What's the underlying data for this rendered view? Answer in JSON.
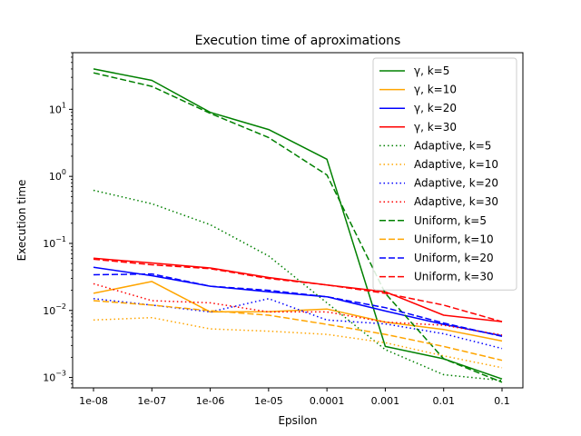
{
  "chart_data": {
    "type": "line",
    "title": "Execution time of aproximations",
    "xlabel": "Epsilon",
    "ylabel": "Execution time",
    "y_scale": "log",
    "ylim": [
      0.0007,
      70
    ],
    "categories": [
      "1e-08",
      "1e-07",
      "1e-06",
      "1e-05",
      "0.0001",
      "0.001",
      "0.01",
      "0.1"
    ],
    "y_ticks": [
      {
        "value": 0.001,
        "base": "10",
        "exp": "−3"
      },
      {
        "value": 0.01,
        "base": "10",
        "exp": "−2"
      },
      {
        "value": 0.1,
        "base": "10",
        "exp": "−1"
      },
      {
        "value": 1,
        "base": "10",
        "exp": "0"
      },
      {
        "value": 10,
        "base": "10",
        "exp": "1"
      }
    ],
    "legend_position": "top-right",
    "grid": false,
    "series": [
      {
        "name": "γ, k=5",
        "color": "#008000",
        "style": "solid",
        "values": [
          40,
          27,
          9,
          5,
          1.8,
          0.0029,
          0.0019,
          0.00095
        ]
      },
      {
        "name": "γ, k=10",
        "color": "#ffa500",
        "style": "solid",
        "values": [
          0.018,
          0.027,
          0.0095,
          0.0096,
          0.0105,
          0.0067,
          0.0052,
          0.0035
        ]
      },
      {
        "name": "γ, k=20",
        "color": "#0000ff",
        "style": "solid",
        "values": [
          0.044,
          0.033,
          0.023,
          0.019,
          0.016,
          0.0098,
          0.0062,
          0.0042
        ]
      },
      {
        "name": "γ, k=30",
        "color": "#ff0000",
        "style": "solid",
        "values": [
          0.06,
          0.051,
          0.043,
          0.031,
          0.024,
          0.019,
          0.0085,
          0.0068
        ]
      },
      {
        "name": "Adaptive, k=5",
        "color": "#008000",
        "style": "dotted",
        "values": [
          0.62,
          0.39,
          0.19,
          0.065,
          0.013,
          0.0026,
          0.0011,
          0.0009
        ]
      },
      {
        "name": "Adaptive, k=10",
        "color": "#ffa500",
        "style": "dotted",
        "values": [
          0.0072,
          0.0078,
          0.0053,
          0.0049,
          0.0044,
          0.0033,
          0.0021,
          0.0014
        ]
      },
      {
        "name": "Adaptive, k=20",
        "color": "#0000ff",
        "style": "dotted",
        "values": [
          0.015,
          0.012,
          0.0095,
          0.015,
          0.0072,
          0.0063,
          0.0045,
          0.0027
        ]
      },
      {
        "name": "Adaptive, k=30",
        "color": "#ff0000",
        "style": "dotted",
        "values": [
          0.025,
          0.014,
          0.013,
          0.0095,
          0.0095,
          0.0067,
          0.006,
          0.0043
        ]
      },
      {
        "name": "Uniform, k=5",
        "color": "#008000",
        "style": "dashed",
        "values": [
          35,
          22,
          8.7,
          3.8,
          1.05,
          0.018,
          0.0019,
          0.00085
        ]
      },
      {
        "name": "Uniform, k=10",
        "color": "#ffa500",
        "style": "dashed",
        "values": [
          0.014,
          0.012,
          0.0099,
          0.0085,
          0.0062,
          0.0044,
          0.0029,
          0.0018
        ]
      },
      {
        "name": "Uniform, k=20",
        "color": "#0000ff",
        "style": "dashed",
        "values": [
          0.034,
          0.035,
          0.023,
          0.02,
          0.016,
          0.011,
          0.0065,
          0.0041
        ]
      },
      {
        "name": "Uniform, k=30",
        "color": "#ff0000",
        "style": "dashed",
        "values": [
          0.058,
          0.048,
          0.042,
          0.03,
          0.024,
          0.018,
          0.012,
          0.0068
        ]
      }
    ]
  }
}
